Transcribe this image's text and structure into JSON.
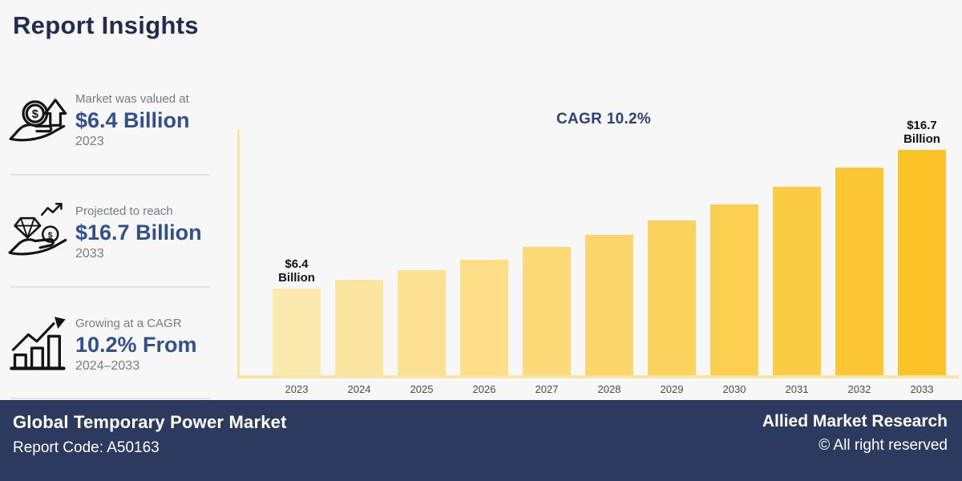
{
  "page": {
    "title": "Report Insights",
    "background_color": "#f7f7f8",
    "title_color": "#232b4f",
    "accent_blue": "#31508d"
  },
  "stats": [
    {
      "icon": "hand-coin-arrow-icon",
      "label": "Market was valued at",
      "value": "$6.4 Billion",
      "period": "2023"
    },
    {
      "icon": "hand-gem-growth-icon",
      "label": "Projected to reach",
      "value": "$16.7 Billion",
      "period": "2033"
    },
    {
      "icon": "growth-bars-arrow-icon",
      "label": "Growing at a CAGR",
      "value": "10.2% From",
      "period": "2024–2033"
    }
  ],
  "chart_data": {
    "type": "bar",
    "title": "CAGR 10.2%",
    "unit": "USD Billion",
    "categories": [
      "2023",
      "2024",
      "2025",
      "2026",
      "2027",
      "2028",
      "2029",
      "2030",
      "2031",
      "2032",
      "2033"
    ],
    "values": [
      6.4,
      7.1,
      7.8,
      8.6,
      9.5,
      10.4,
      11.5,
      12.7,
      14.0,
      15.4,
      16.7
    ],
    "annotations": [
      {
        "category": "2023",
        "lines": [
          "$6.4",
          "Billion"
        ]
      },
      {
        "category": "2033",
        "lines": [
          "$16.7",
          "Billion"
        ]
      }
    ],
    "ylim": [
      0,
      17.5
    ],
    "grid": false,
    "legend": false,
    "bar_color_start": "#FCE9AE",
    "bar_color_end": "#FBC328",
    "axis_color": "#F8E5A3",
    "annotation_color": "#111111",
    "title_color": "#2D4176"
  },
  "footer": {
    "market": "Global Temporary Power Market",
    "report_code": "Report Code: A50163",
    "company": "Allied Market Research",
    "rights": "© All right reserved",
    "background_color": "#2b3a5e"
  }
}
